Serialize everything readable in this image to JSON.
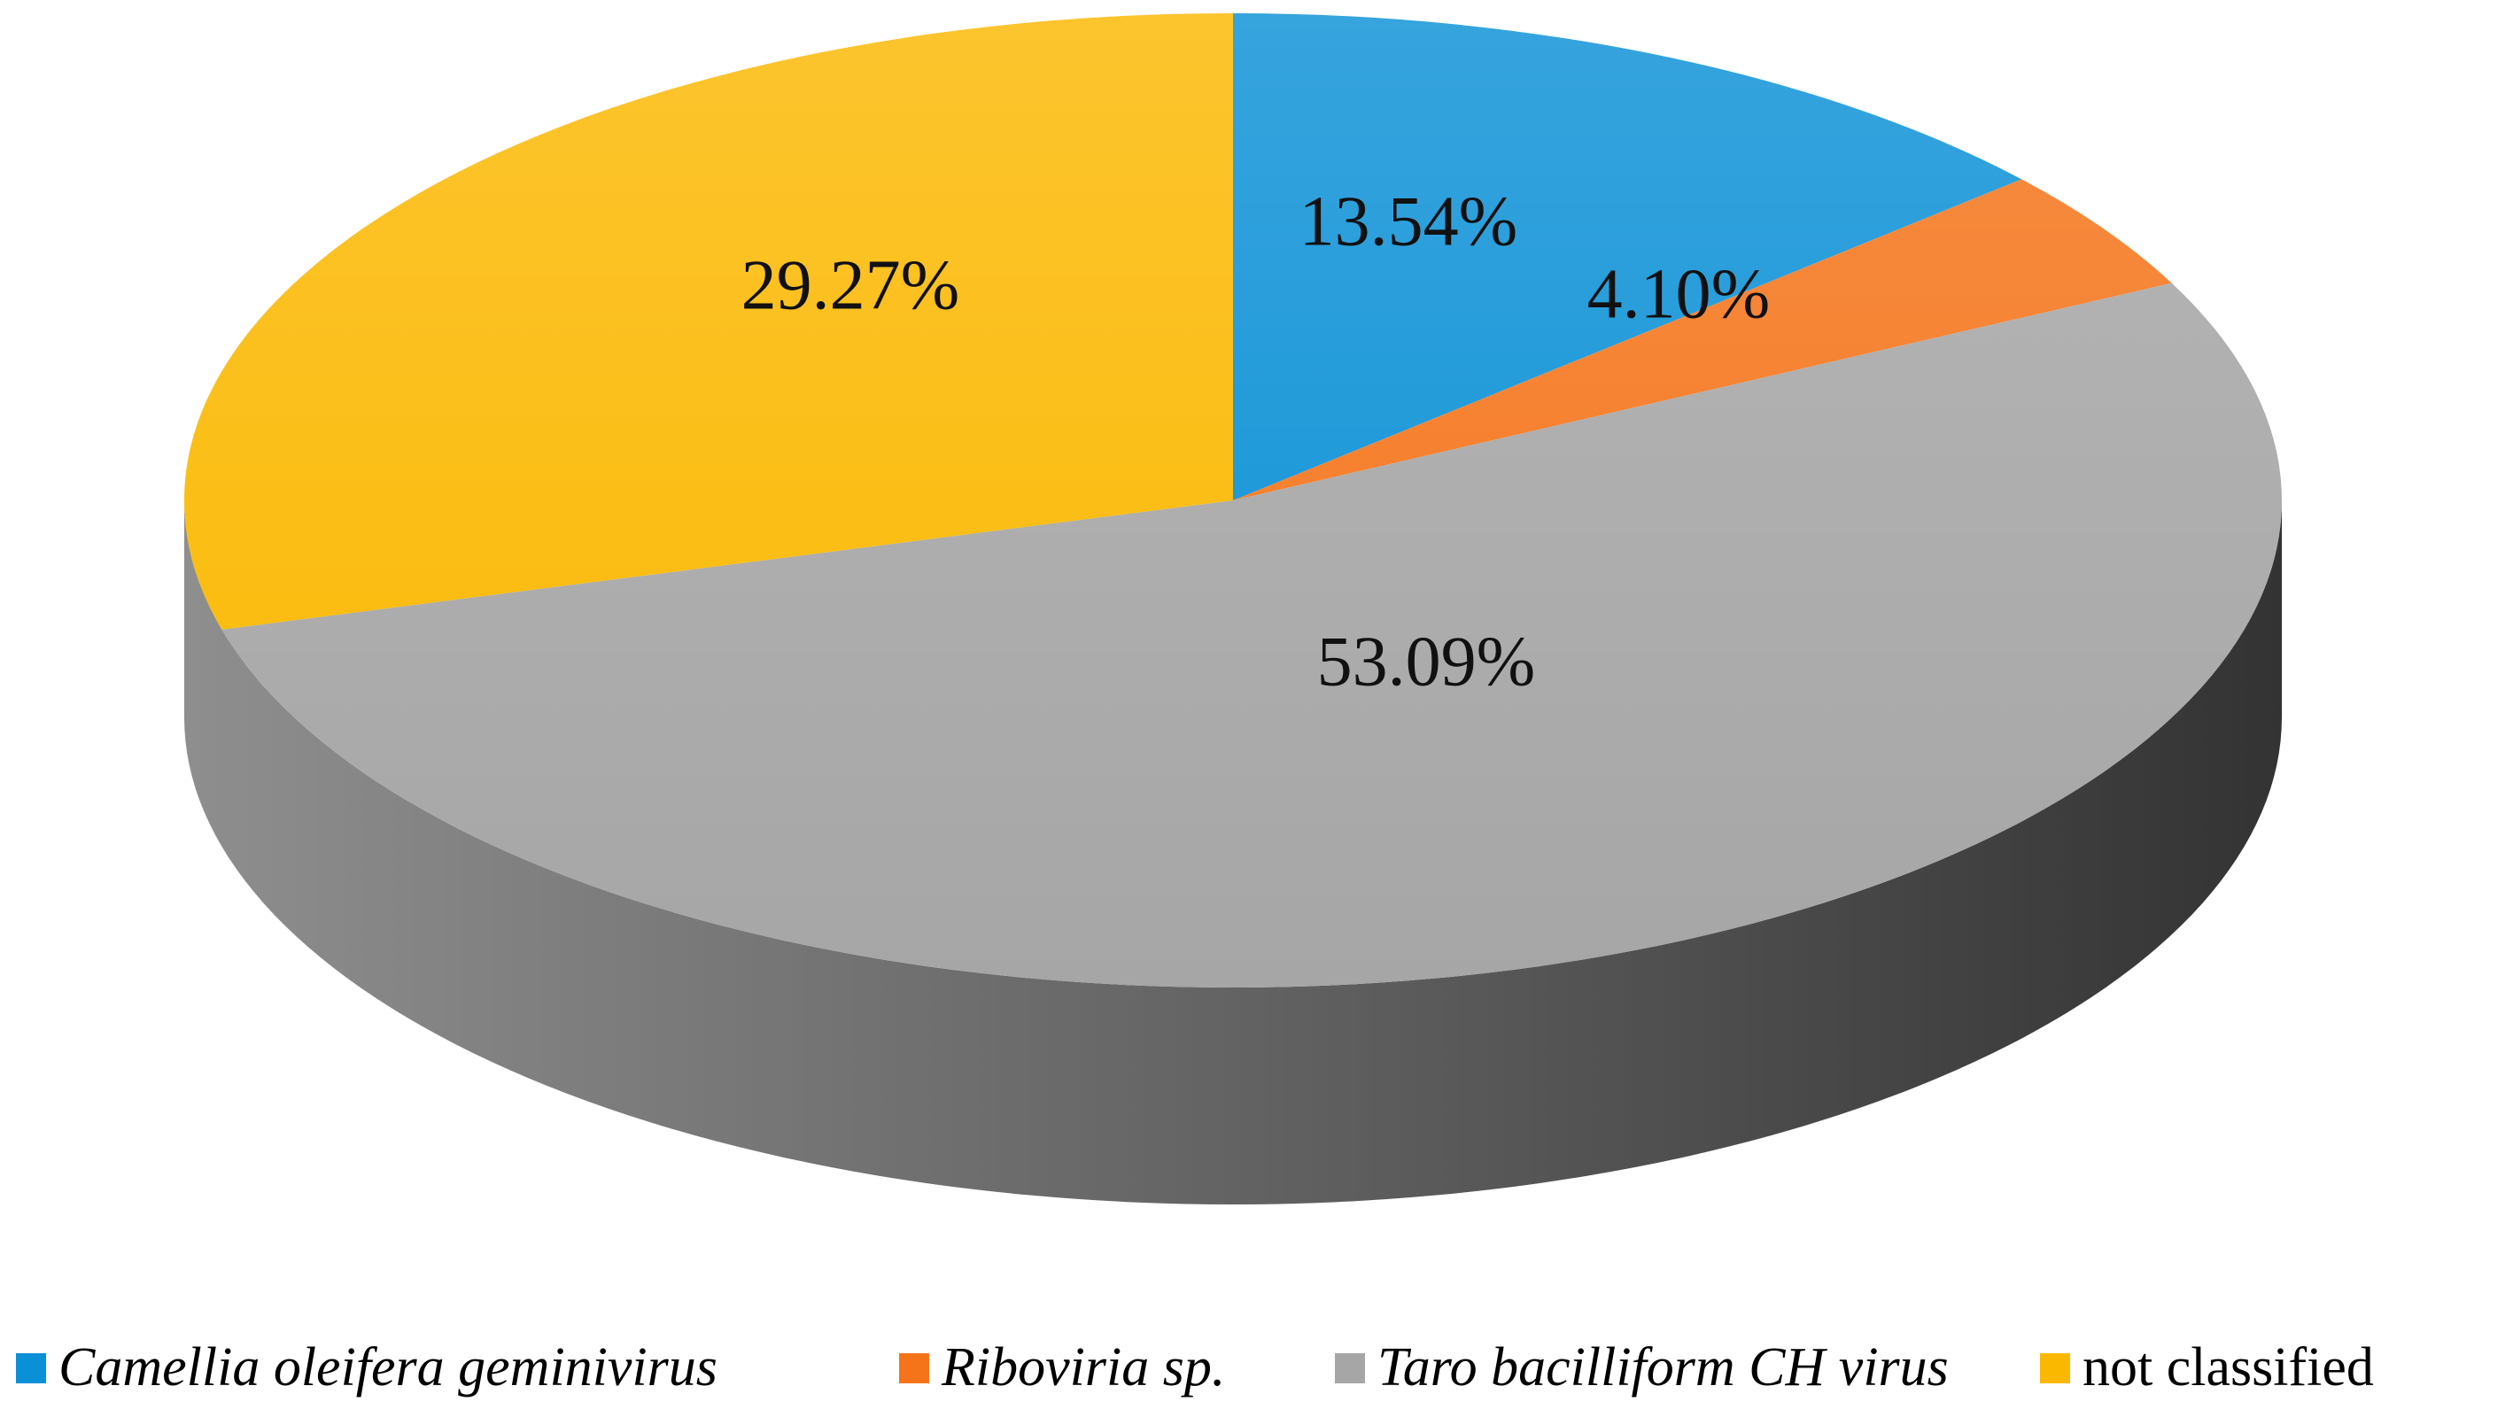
{
  "chart_data": {
    "type": "pie",
    "style": "3d",
    "title": "",
    "slices": [
      {
        "name": "Camellia oleifera geminivirus",
        "value": 13.54,
        "label": "13.54%",
        "color": "#0a90d6",
        "italic": true
      },
      {
        "name": "Riboviria sp.",
        "value": 4.1,
        "label": "4.10%",
        "color": "#f5741a",
        "italic": true
      },
      {
        "name": "Taro bacilliform CH virus",
        "value": 53.09,
        "label": "53.09%",
        "color": "#a6a6a6",
        "italic": true
      },
      {
        "name": "not classified",
        "value": 29.27,
        "label": "29.27%",
        "color": "#fbb800",
        "italic": false
      }
    ],
    "legend_position": "bottom"
  }
}
